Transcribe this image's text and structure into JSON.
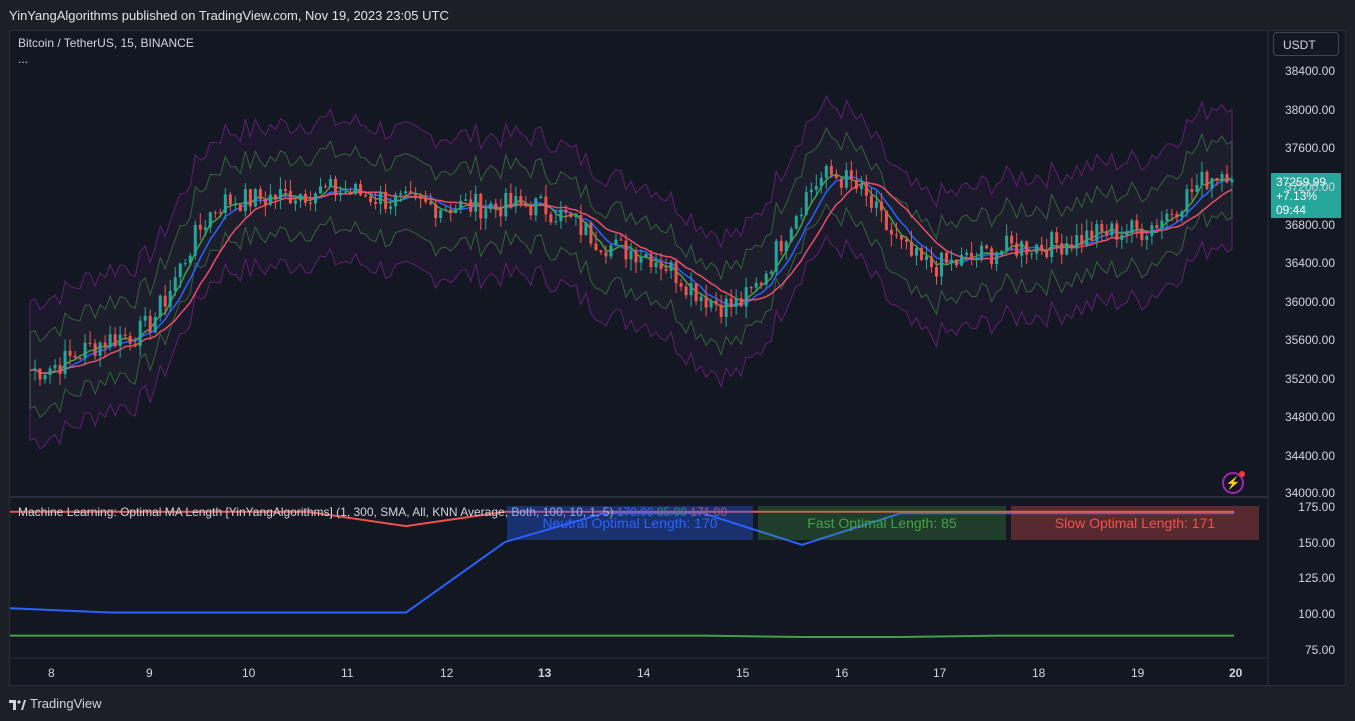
{
  "header": {
    "published": "YinYangAlgorithms published on TradingView.com, Nov 19, 2023 23:05 UTC"
  },
  "chart": {
    "symbol": "Bitcoin / TetherUS, 15, BINANCE",
    "more": "...",
    "currency": "USDT",
    "last_price": "37259.99",
    "change": "+7.13%",
    "countdown": "09:44"
  },
  "indicator": {
    "title": "Machine Learning: Optimal MA Length [YinYangAlgorithms] (1, 300, SMA, All, KNN Average, Both, 100, 10, 1, 5)",
    "value1": "170.00",
    "value2": "85.00",
    "value3": "171.00",
    "table": {
      "neutral": "Neutral Optimal Length: 170",
      "fast": "Fast Optimal Length: 85",
      "slow": "Slow Optimal Length: 171"
    }
  },
  "price_axis": [
    "38400.00",
    "38000.00",
    "37600.00",
    "37200.00",
    "36800.00",
    "36400.00",
    "36000.00",
    "35600.00",
    "35200.00",
    "34800.00",
    "34400.00",
    "34000.00"
  ],
  "ind_axis": [
    "175.00",
    "150.00",
    "125.00",
    "100.00",
    "75.00"
  ],
  "time_axis": [
    "8",
    "9",
    "10",
    "11",
    "12",
    "13",
    "14",
    "15",
    "16",
    "17",
    "18",
    "19",
    "20"
  ],
  "footer": {
    "brand": "TradingView"
  },
  "colors": {
    "up": "#26a69a",
    "down": "#ef5350",
    "neutral": "#2962ff",
    "fast": "#43a047",
    "slow": "#f0514f",
    "bg": "#131722"
  },
  "chart_data": {
    "type": "line",
    "title": "Bitcoin / TetherUS, 15, BINANCE",
    "x": [
      "8",
      "9",
      "10",
      "11",
      "12",
      "13",
      "14",
      "15",
      "16",
      "17",
      "18",
      "19",
      "20"
    ],
    "price_ylim": [
      34000,
      38500
    ],
    "series": [
      {
        "name": "BTCUSDT",
        "values": [
          35250,
          35600,
          36950,
          37050,
          36900,
          36900,
          36450,
          35900,
          37200,
          36300,
          36500,
          36650,
          37260
        ]
      },
      {
        "name": "Neutral Optimal Length",
        "values": [
          104,
          101,
          101,
          101,
          101,
          150,
          170,
          170,
          148,
          170,
          170,
          170,
          170
        ]
      },
      {
        "name": "Fast Optimal Length",
        "values": [
          85,
          85,
          85,
          85,
          85,
          85,
          85,
          85,
          84,
          84,
          85,
          85,
          85
        ]
      },
      {
        "name": "Slow Optimal Length",
        "values": [
          171,
          171,
          171,
          171,
          161,
          171,
          171,
          171,
          171,
          171,
          171,
          171,
          171
        ]
      }
    ],
    "indicator_ylim": [
      75,
      175
    ]
  }
}
